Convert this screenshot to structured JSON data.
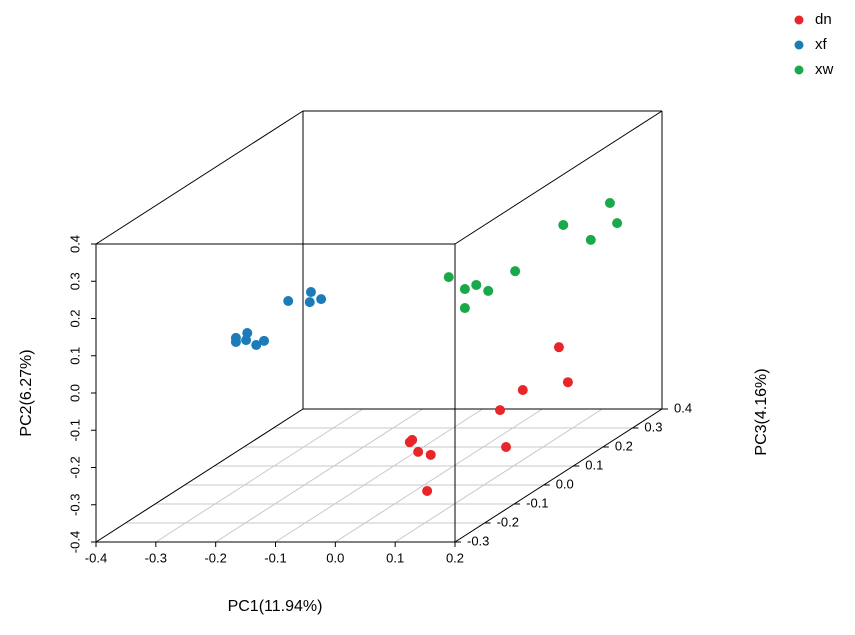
{
  "chart_data": {
    "type": "scatter3d",
    "xlabel": "PC1(11.94%)",
    "ylabel": "PC2(6.27%)",
    "zlabel": "PC3(4.16%)",
    "xlim": [
      -0.4,
      0.2
    ],
    "ylim": [
      -0.4,
      0.4
    ],
    "zlim": [
      -0.3,
      0.4
    ],
    "xticks": [
      -0.4,
      -0.3,
      -0.2,
      -0.1,
      {
        "value": 0,
        "label": "0.0"
      },
      0.1,
      0.2
    ],
    "yticks": [
      -0.4,
      -0.3,
      -0.2,
      -0.1,
      {
        "value": 0,
        "label": "0.0"
      },
      0.1,
      0.2,
      0.3,
      0.4
    ],
    "zticks": [
      -0.3,
      -0.2,
      -0.1,
      {
        "value": 0,
        "label": "0.0"
      },
      0.1,
      0.2,
      0.3,
      0.4
    ],
    "grid": true,
    "legend": "top-right",
    "series": [
      {
        "name": "dn",
        "color": "#e8262a",
        "x": [
          0.075,
          0.079,
          0.089,
          0.11,
          0.104,
          0.127,
          0.165,
          0.137,
          0.176,
          0.191
        ],
        "y": [
          -0.183,
          -0.177,
          -0.209,
          -0.217,
          -0.314,
          -0.199,
          -0.145,
          -0.298,
          -0.081,
          -0.175
        ],
        "z": [
          -0.2,
          -0.2,
          -0.2,
          -0.2,
          -0.2,
          0.0,
          0.0,
          0.0,
          0.1,
          0.1
        ]
      },
      {
        "name": "xf",
        "color": "#1b7cb8",
        "x": [
          -0.265,
          -0.265,
          -0.246,
          -0.248,
          -0.231,
          -0.218,
          -0.227,
          -0.189,
          -0.191,
          -0.172
        ],
        "y": [
          0.046,
          0.035,
          0.059,
          0.04,
          0.027,
          0.038,
          0.094,
          0.118,
          0.091,
          0.099
        ],
        "z": [
          -0.1,
          -0.1,
          -0.1,
          -0.1,
          -0.1,
          -0.1,
          0.0,
          0.0,
          0.0,
          0.0
        ]
      },
      {
        "name": "xw",
        "color": "#19a94a",
        "x": [
          -0.107,
          -0.08,
          -0.061,
          -0.041,
          -0.08,
          0.004,
          0.035,
          0.081,
          0.113,
          0.125
        ],
        "y": [
          0.005,
          -0.027,
          -0.016,
          -0.032,
          -0.078,
          0.021,
          0.094,
          0.054,
          0.153,
          0.099
        ],
        "z": [
          0.3,
          0.3,
          0.3,
          0.3,
          0.3,
          0.3,
          0.4,
          0.4,
          0.4,
          0.4
        ]
      }
    ]
  }
}
